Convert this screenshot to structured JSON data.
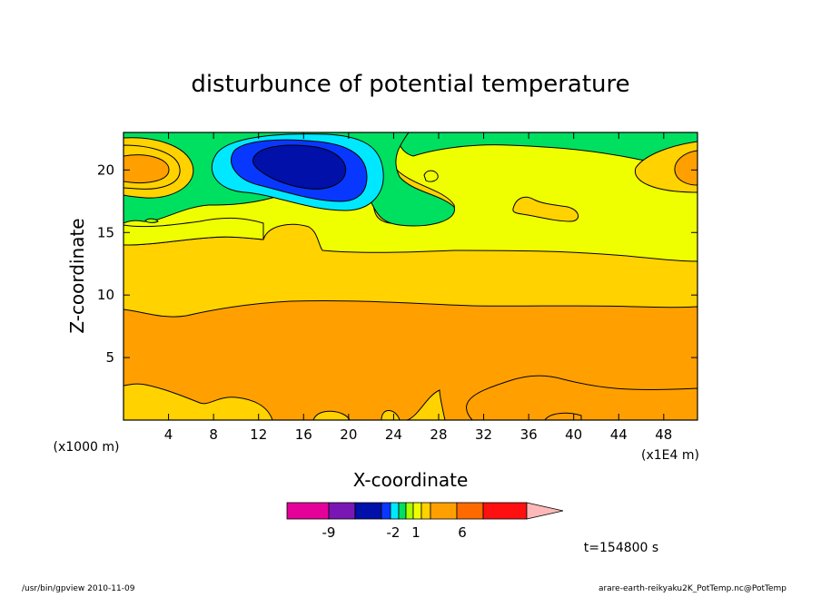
{
  "chart_data": {
    "type": "heatmap",
    "title": "disturbunce of potential temperature",
    "xlabel": "X-coordinate",
    "ylabel": "Z-coordinate",
    "x_unit": "(x1E4 m)",
    "y_unit": "(x1000 m)",
    "xlim": [
      0,
      51
    ],
    "ylim": [
      0,
      23
    ],
    "x_ticks": [
      "4",
      "8",
      "12",
      "16",
      "20",
      "24",
      "28",
      "32",
      "36",
      "40",
      "44",
      "48"
    ],
    "y_ticks": [
      "5",
      "10",
      "15",
      "20"
    ],
    "colorbar": {
      "levels": [
        -12,
        -9,
        -6,
        -2,
        -1,
        0,
        1,
        2,
        3,
        4,
        6,
        9,
        12
      ],
      "labels": [
        "-9",
        "-2",
        "1",
        "6"
      ],
      "colors": [
        "#e6009a",
        "#7a16b4",
        "#0010a8",
        "#0838ff",
        "#00e8ff",
        "#00e060",
        "#a8ff00",
        "#f0ff00",
        "#ffd200",
        "#ffa000",
        "#ff6a00",
        "#ff1010",
        "#ff8080",
        "#ffb8b8"
      ]
    },
    "regions": [
      {
        "level": "3 to 4",
        "color": "#ffa000",
        "x_range": [
          0,
          51
        ],
        "z_range": [
          0.5,
          9
        ]
      },
      {
        "level": "2 to 3",
        "color": "#ffd200",
        "x_range": [
          0,
          51
        ],
        "z_range": [
          0,
          14
        ]
      },
      {
        "level": "1 to 2",
        "color": "#f0ff00",
        "x_range": [
          21,
          51
        ],
        "z_range": [
          13,
          21
        ]
      },
      {
        "level": "0 to 1",
        "color": "#a8ff00",
        "x_range": [
          0,
          51
        ],
        "z_range": [
          14,
          23
        ]
      },
      {
        "level": "-1 to 0",
        "color": "#00e8ff",
        "x_range": [
          7.5,
          23
        ],
        "z_range": [
          17,
          23
        ]
      },
      {
        "level": "-2 to -1",
        "color": "#0838ff",
        "x_range": [
          9.5,
          21.5
        ],
        "z_range": [
          18.2,
          22.3
        ]
      },
      {
        "level": "-6 to -2",
        "color": "#0010a8",
        "x_range": [
          11.5,
          20
        ],
        "z_range": [
          18.8,
          21.8
        ]
      },
      {
        "level": "3 to 4",
        "color": "#ffa000",
        "x_range": [
          0,
          4
        ],
        "z_range": [
          19,
          21.5
        ]
      },
      {
        "level": "3 to 4",
        "color": "#ffa000",
        "x_range": [
          49,
          51
        ],
        "z_range": [
          19,
          21.5
        ]
      }
    ]
  },
  "time_label": "t=154800 s",
  "footer_left": "/usr/bin/gpview  2010-11-09",
  "footer_right": "arare-earth-reikyaku2K_PotTemp.nc@PotTemp"
}
